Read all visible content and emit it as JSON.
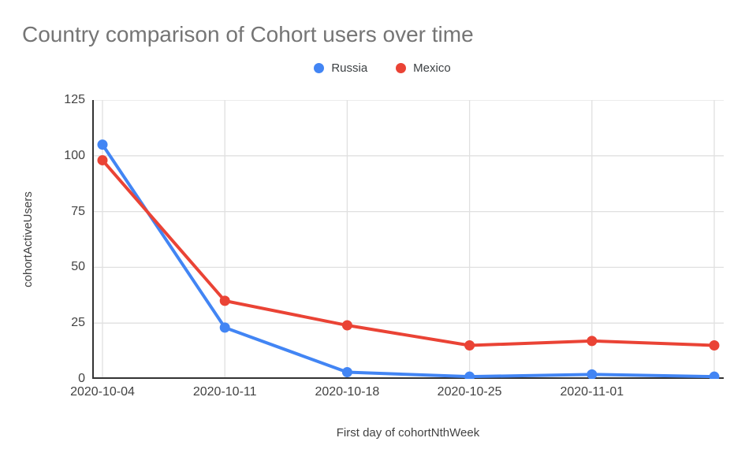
{
  "chart_data": {
    "type": "line",
    "title": "Country comparison of Cohort users over time",
    "categories": [
      "2020-10-04",
      "2020-10-11",
      "2020-10-18",
      "2020-10-25",
      "2020-11-01",
      ""
    ],
    "series": [
      {
        "name": "Russia",
        "color": "#4285F4",
        "values": [
          105,
          23,
          3,
          1,
          2,
          1
        ]
      },
      {
        "name": "Mexico",
        "color": "#EA4335",
        "values": [
          98,
          35,
          24,
          15,
          17,
          15
        ]
      }
    ],
    "xlabel": "First day of cohortNthWeek",
    "ylabel": "cohortActiveUsers",
    "ylim": [
      0,
      125
    ],
    "y_ticks": [
      0,
      25,
      50,
      75,
      100,
      125
    ],
    "grid": true,
    "legend_position": "top",
    "point_markers": true
  },
  "colors": {
    "title_text": "#757575",
    "axis_text": "#424242",
    "grid_line": "#e0e0e0",
    "axis_line": "#333333",
    "background": "#ffffff"
  }
}
